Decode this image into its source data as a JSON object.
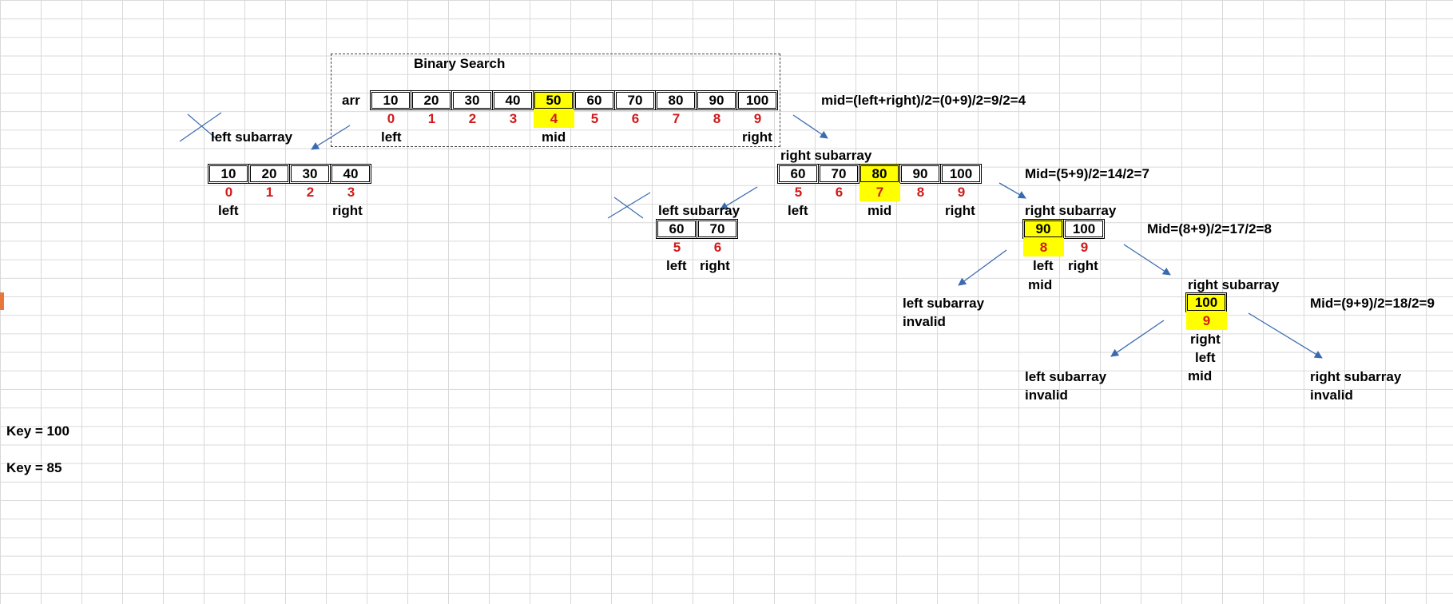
{
  "title": "Binary Search",
  "arr_label": "arr",
  "main_array": {
    "values": [
      "10",
      "20",
      "30",
      "40",
      "50",
      "60",
      "70",
      "80",
      "90",
      "100"
    ],
    "indices": [
      "0",
      "1",
      "2",
      "3",
      "4",
      "5",
      "6",
      "7",
      "8",
      "9"
    ],
    "highlight": 4,
    "pointers": {
      "left": "left",
      "mid": "mid",
      "right": "right"
    }
  },
  "main_formula": "mid=(left+right)/2=(0+9)/2=9/2=4",
  "left_sub": {
    "label": "left subarray",
    "values": [
      "10",
      "20",
      "30",
      "40"
    ],
    "indices": [
      "0",
      "1",
      "2",
      "3"
    ],
    "pointers": {
      "left": "left",
      "right": "right"
    }
  },
  "right_sub1": {
    "label": "right subarray",
    "values": [
      "60",
      "70",
      "80",
      "90",
      "100"
    ],
    "indices": [
      "5",
      "6",
      "7",
      "8",
      "9"
    ],
    "highlight": 2,
    "pointers": {
      "left": "left",
      "mid": "mid",
      "right": "right"
    },
    "formula": "Mid=(5+9)/2=14/2=7"
  },
  "left_sub2": {
    "label": "left subarray",
    "values": [
      "60",
      "70"
    ],
    "indices": [
      "5",
      "6"
    ],
    "pointers": {
      "left": "left",
      "right": "right"
    }
  },
  "right_sub2": {
    "label": "right subarray",
    "values": [
      "90",
      "100"
    ],
    "indices": [
      "8",
      "9"
    ],
    "highlight": 0,
    "pointers": {
      "left": "left",
      "right": "right",
      "mid": "mid"
    },
    "formula": "Mid=(8+9)/2=17/2=8"
  },
  "left_invalid_1": {
    "label": "left subarray",
    "status": "invalid"
  },
  "right_sub3": {
    "label": "right subarray",
    "values": [
      "100"
    ],
    "indices": [
      "9"
    ],
    "highlight": 0,
    "pointers": {
      "right": "right",
      "left": "left",
      "mid": "mid"
    },
    "formula": "Mid=(9+9)/2=18/2=9"
  },
  "left_invalid_2": {
    "label": "left subarray",
    "status": "invalid"
  },
  "right_invalid": {
    "label": "right subarray",
    "status": "invalid"
  },
  "keys": [
    "Key = 100",
    "Key = 85"
  ],
  "colors": {
    "highlight": "#ffff00",
    "index": "#d11a1a",
    "arrow": "#3a6bb0",
    "grid": "#d9d9d9",
    "row_marker": "#e9773b"
  }
}
